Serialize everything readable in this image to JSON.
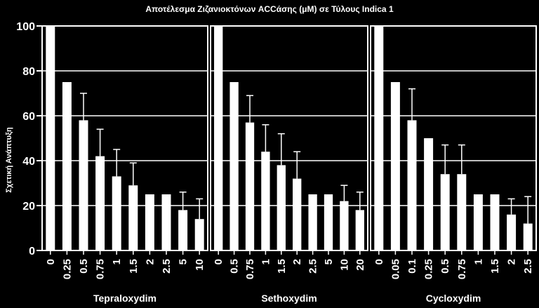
{
  "chart_data": {
    "type": "bar",
    "title": "Αποτέλεσμα Ζιζανιοκτόνων ACCάσης (μM) σε Τύλους Indica 1",
    "xlabel": "",
    "ylabel": "Σχετική Ανάπτυξη",
    "ylim": [
      0,
      100
    ],
    "yticks": [
      "0",
      "20",
      "40",
      "60",
      "80",
      "100"
    ],
    "grid": true,
    "panels": [
      {
        "name": "Tepraloxydim",
        "categories": [
          "0",
          "0.25",
          "0.5",
          "0.75",
          "1",
          "1.5",
          "2",
          "2.5",
          "5",
          "10"
        ],
        "values": [
          100,
          75,
          58,
          42,
          33,
          29,
          25,
          25,
          18,
          14
        ],
        "errors": [
          0,
          0,
          12,
          12,
          12,
          10,
          0,
          0,
          8,
          9
        ]
      },
      {
        "name": "Sethoxydim",
        "categories": [
          "0",
          "0.5",
          "0.75",
          "1",
          "1.5",
          "2",
          "2.5",
          "5",
          "10",
          "20"
        ],
        "values": [
          100,
          75,
          57,
          44,
          38,
          32,
          25,
          25,
          22,
          18
        ],
        "errors": [
          0,
          0,
          12,
          12,
          14,
          12,
          0,
          0,
          7,
          8
        ]
      },
      {
        "name": "Cycloxydim",
        "categories": [
          "0",
          "0.05",
          "0.1",
          "0.25",
          "0.5",
          "0.75",
          "1",
          "1.5",
          "2",
          "2.5"
        ],
        "values": [
          100,
          75,
          58,
          50,
          34,
          34,
          25,
          25,
          16,
          12
        ],
        "errors": [
          0,
          0,
          14,
          0,
          13,
          13,
          0,
          0,
          7,
          12
        ]
      }
    ]
  }
}
